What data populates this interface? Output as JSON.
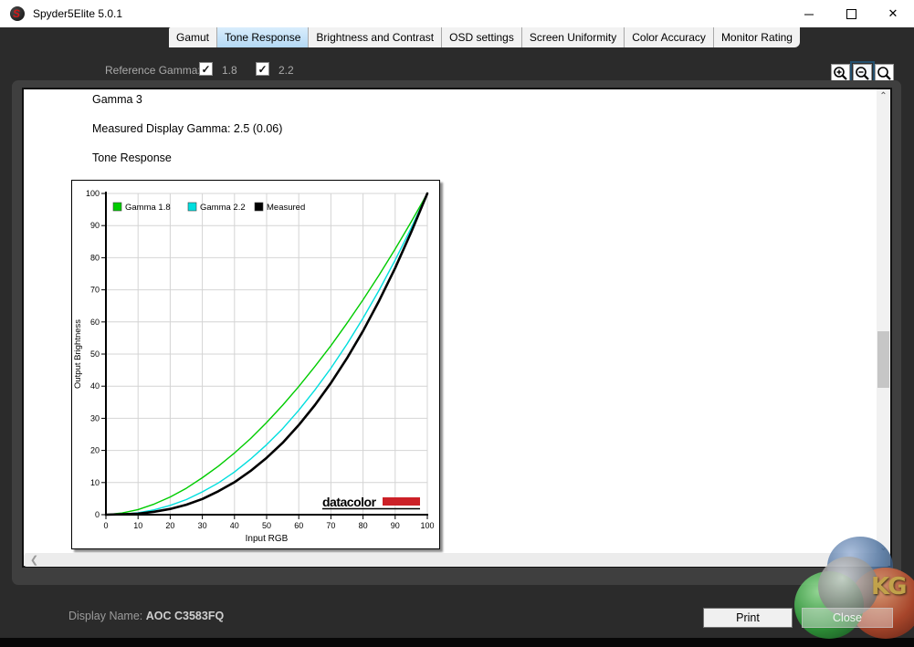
{
  "window": {
    "title": "Spyder5Elite 5.0.1"
  },
  "tabs": [
    {
      "label": "Gamut",
      "selected": false
    },
    {
      "label": "Tone Response",
      "selected": true
    },
    {
      "label": "Brightness and Contrast",
      "selected": false
    },
    {
      "label": "OSD settings",
      "selected": false
    },
    {
      "label": "Screen Uniformity",
      "selected": false
    },
    {
      "label": "Color Accuracy",
      "selected": false
    },
    {
      "label": "Monitor Rating",
      "selected": false
    }
  ],
  "toolbar": {
    "reference_gamma_label": "Reference Gamma:",
    "checkboxes": [
      {
        "label": "1.8",
        "checked": true,
        "mark": "✓"
      },
      {
        "label": "2.2",
        "checked": true,
        "mark": "✓"
      }
    ]
  },
  "content": {
    "heading1": "Gamma 3",
    "heading2": "Measured Display Gamma: 2.5 (0.06)",
    "heading3": "Tone Response"
  },
  "chart_data": {
    "type": "line",
    "title": "Tone Response",
    "xlabel": "Input RGB",
    "ylabel": "Output Brightness",
    "xlim": [
      0,
      100
    ],
    "ylim": [
      0,
      100
    ],
    "x_ticks": [
      0,
      10,
      20,
      30,
      40,
      50,
      60,
      70,
      80,
      90,
      100
    ],
    "y_ticks": [
      0,
      10,
      20,
      30,
      40,
      50,
      60,
      70,
      80,
      90,
      100
    ],
    "grid": true,
    "legend_position": "top-inside",
    "x": [
      0,
      5,
      10,
      15,
      20,
      25,
      30,
      35,
      40,
      45,
      50,
      55,
      60,
      65,
      70,
      75,
      80,
      85,
      90,
      95,
      100
    ],
    "series": [
      {
        "name": "Gamma 1.8",
        "color": "#00cc00",
        "width": 1.4,
        "values": [
          0,
          0.5,
          1.6,
          3.3,
          5.5,
          8.2,
          11.5,
          15.1,
          19.2,
          23.7,
          28.7,
          34.1,
          39.9,
          46.1,
          52.6,
          59.6,
          66.9,
          74.6,
          82.7,
          91.2,
          100
        ]
      },
      {
        "name": "Gamma 2.2",
        "color": "#00dede",
        "width": 1.4,
        "values": [
          0,
          0.1,
          0.6,
          1.5,
          2.9,
          4.7,
          7.1,
          9.9,
          13.3,
          17.3,
          21.8,
          26.8,
          32.5,
          38.8,
          45.6,
          53.1,
          61.2,
          69.9,
          79.3,
          89.3,
          100
        ]
      },
      {
        "name": "Measured",
        "color": "#000000",
        "width": 2.6,
        "values": [
          0,
          0.1,
          0.3,
          0.9,
          1.8,
          3.1,
          4.9,
          7.3,
          10.1,
          13.6,
          17.7,
          22.4,
          27.9,
          34.1,
          41.0,
          48.7,
          57.2,
          66.6,
          76.8,
          88.0,
          100
        ]
      }
    ],
    "brand": {
      "text": "datacolor",
      "red": "#cc2027"
    }
  },
  "scroll": {
    "up": "⌃",
    "down": "⌄",
    "left": "❮"
  },
  "zoom_tools": {
    "zoom_in": "zoom-in",
    "zoom_out": "zoom-out",
    "zoom_reset": "zoom-reset"
  },
  "win_buttons": {
    "close": "✕"
  },
  "footer": {
    "display_name_label": "Display Name: ",
    "display_name_value": "AOC C3583FQ",
    "print_label": "Print",
    "close_label": "Close"
  },
  "watermark": {
    "text": "KG"
  },
  "colors": {
    "header_bg": "#2b2b2b",
    "selected_tab": "#b4d9f5",
    "green_series": "#00cc00",
    "cyan_series": "#00dede",
    "brand_red": "#cc2027"
  }
}
